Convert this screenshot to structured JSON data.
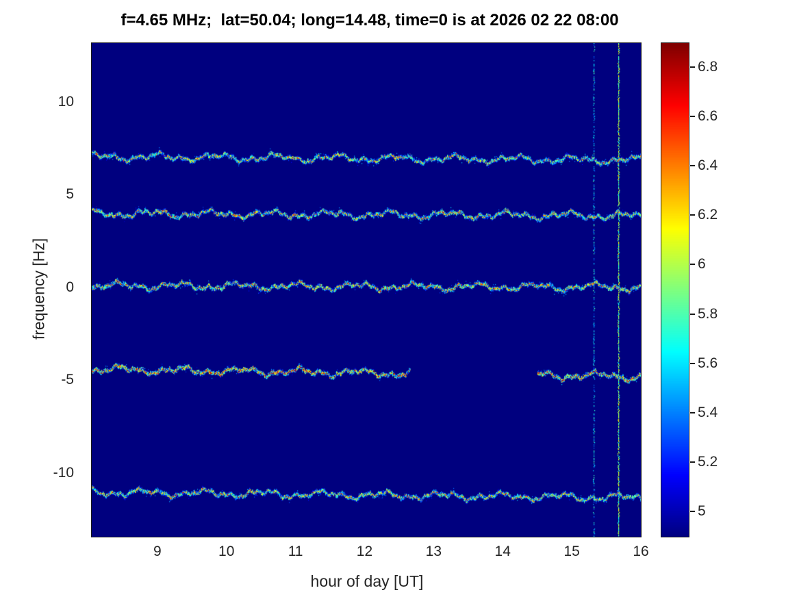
{
  "chart_data": {
    "type": "heatmap",
    "title": "f=4.65 MHz;  lat=50.04; long=14.48, time=0 is at 2026 02 22 08:00",
    "xlabel": "hour of day [UT]",
    "ylabel": "frequency [Hz]",
    "xlim": [
      8.05,
      16
    ],
    "ylim": [
      -13.4,
      13.2
    ],
    "x_ticks": [
      "9",
      "10",
      "11",
      "12",
      "13",
      "14",
      "15",
      "16"
    ],
    "y_ticks": [
      10,
      5,
      0,
      -5,
      -10
    ],
    "grid": false,
    "background_value": 4.9,
    "colorbar": {
      "colormap": "jet",
      "clim": [
        4.9,
        6.9
      ],
      "ticks": [
        "5",
        "5.2",
        "5.4",
        "5.6",
        "5.8",
        "6",
        "6.2",
        "6.4",
        "6.6",
        "6.8"
      ],
      "position": "right"
    },
    "traces": [
      {
        "name": "doppler-trace-plus7Hz",
        "freq": 7.08,
        "drift": -0.18,
        "peak": 6.35,
        "segments": [
          [
            8.05,
            16
          ]
        ]
      },
      {
        "name": "doppler-trace-plus4Hz",
        "freq": 4.02,
        "drift": -0.12,
        "peak": 6.4,
        "segments": [
          [
            8.05,
            16
          ]
        ]
      },
      {
        "name": "doppler-trace-0Hz",
        "freq": 0.12,
        "drift": -0.06,
        "peak": 6.45,
        "segments": [
          [
            8.05,
            16
          ]
        ]
      },
      {
        "name": "doppler-trace-minus4Hz",
        "freq": -4.38,
        "drift": -0.38,
        "peak": 6.62,
        "segments": [
          [
            8.05,
            12.65
          ],
          [
            14.5,
            16
          ]
        ]
      },
      {
        "name": "doppler-trace-minus11Hz",
        "freq": -11.0,
        "drift": -0.3,
        "peak": 6.35,
        "segments": [
          [
            8.05,
            16
          ]
        ]
      }
    ],
    "vertical_interference": [
      {
        "x": 15.32,
        "value": 5.45,
        "density": 0.45
      },
      {
        "x": 15.67,
        "value": 5.8,
        "density": 0.85
      }
    ]
  }
}
